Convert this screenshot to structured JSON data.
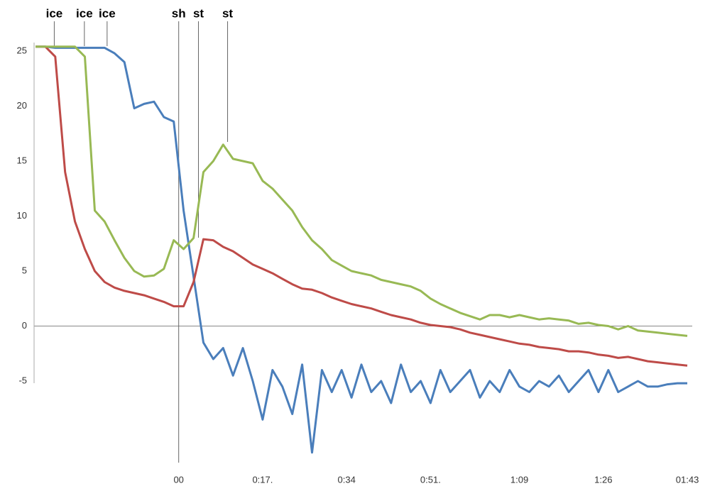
{
  "chart_data": {
    "type": "line",
    "annotations": [
      {
        "text": "ice",
        "x": -25.2
      },
      {
        "text": "ice",
        "x": -19.1
      },
      {
        "text": "ice",
        "x": -14.5
      },
      {
        "text": "sh",
        "x": 0
      },
      {
        "text": "st",
        "x": 4
      },
      {
        "text": "st",
        "x": 9.9
      }
    ],
    "x": [
      -29,
      -27,
      -25,
      -23,
      -21,
      -19,
      -17,
      -15,
      -13,
      -11,
      -9,
      -7,
      -5,
      -3,
      -1,
      1,
      3,
      5,
      7,
      9,
      11,
      13,
      15,
      17,
      19,
      21,
      23,
      25,
      27,
      29,
      31,
      33,
      35,
      37,
      39,
      41,
      43,
      45,
      47,
      49,
      51,
      53,
      55,
      57,
      59,
      61,
      63,
      65,
      67,
      69,
      71,
      73,
      75,
      77,
      79,
      81,
      83,
      85,
      87,
      89,
      91,
      93,
      95,
      97,
      99,
      101,
      103
    ],
    "series": [
      {
        "color": "#4a7ebb",
        "values": [
          25.4,
          25.4,
          25.3,
          25.3,
          25.3,
          25.3,
          25.3,
          25.3,
          24.8,
          24.0,
          19.8,
          20.2,
          20.4,
          19.0,
          18.6,
          10.5,
          4.5,
          -1.5,
          -3,
          -2,
          -4.5,
          -2,
          -5,
          -8.5,
          -4,
          -5.5,
          -8,
          -3.5,
          -11.5,
          -4,
          -6,
          -4,
          -6.5,
          -3.5,
          -6,
          -5,
          -7,
          -3.5,
          -6,
          -5,
          -7,
          -4,
          -6,
          -5,
          -4,
          -6.5,
          -5,
          -6,
          -4,
          -5.5,
          -6,
          -5,
          -5.5,
          -4.5,
          -6,
          -5,
          -4,
          -6,
          -4,
          -6,
          -5.5,
          -5,
          -5.5,
          -5.5,
          -5.3,
          -5.2,
          -5.2
        ]
      },
      {
        "color": "#be4b48",
        "values": [
          25.4,
          25.4,
          24.5,
          14,
          9.5,
          7,
          5,
          4,
          3.5,
          3.2,
          3.0,
          2.8,
          2.5,
          2.2,
          1.8,
          1.8,
          4,
          7.9,
          7.8,
          7.2,
          6.8,
          6.2,
          5.6,
          5.2,
          4.8,
          4.3,
          3.8,
          3.4,
          3.3,
          3.0,
          2.6,
          2.3,
          2.0,
          1.8,
          1.6,
          1.3,
          1.0,
          0.8,
          0.6,
          0.3,
          0.1,
          0.0,
          -0.1,
          -0.3,
          -0.6,
          -0.8,
          -1.0,
          -1.2,
          -1.4,
          -1.6,
          -1.7,
          -1.9,
          -2.0,
          -2.1,
          -2.3,
          -2.3,
          -2.4,
          -2.6,
          -2.7,
          -2.9,
          -2.8,
          -3.0,
          -3.2,
          -3.3,
          -3.4,
          -3.5,
          -3.6
        ]
      },
      {
        "color": "#98b954",
        "values": [
          25.4,
          25.4,
          25.4,
          25.4,
          25.4,
          24.5,
          10.5,
          9.5,
          7.8,
          6.2,
          5.0,
          4.5,
          4.6,
          5.2,
          7.8,
          7.0,
          8,
          14,
          15,
          16.5,
          15.2,
          15,
          14.8,
          13.2,
          12.5,
          11.5,
          10.5,
          9,
          7.8,
          7,
          6,
          5.5,
          5.0,
          4.8,
          4.6,
          4.2,
          4.0,
          3.8,
          3.6,
          3.2,
          2.5,
          2.0,
          1.6,
          1.2,
          0.9,
          0.6,
          1.0,
          1.0,
          0.8,
          1.0,
          0.8,
          0.6,
          0.7,
          0.6,
          0.5,
          0.2,
          0.3,
          0.1,
          0.0,
          -0.3,
          0.0,
          -0.4,
          -0.5,
          -0.6,
          -0.7,
          -0.8,
          -0.9
        ]
      }
    ],
    "xlim": [
      -29,
      104
    ],
    "ylim": [
      -11,
      29
    ],
    "xticks": [
      {
        "value": 0,
        "label": "00"
      },
      {
        "value": 17,
        "label": "0:17."
      },
      {
        "value": 34,
        "label": "0:34"
      },
      {
        "value": 51,
        "label": "0:51."
      },
      {
        "value": 69,
        "label": "1:09"
      },
      {
        "value": 86,
        "label": "1:26"
      },
      {
        "value": 103,
        "label": "01:43"
      }
    ],
    "yticks": [
      -5,
      0,
      5,
      10,
      15,
      20,
      25
    ]
  }
}
